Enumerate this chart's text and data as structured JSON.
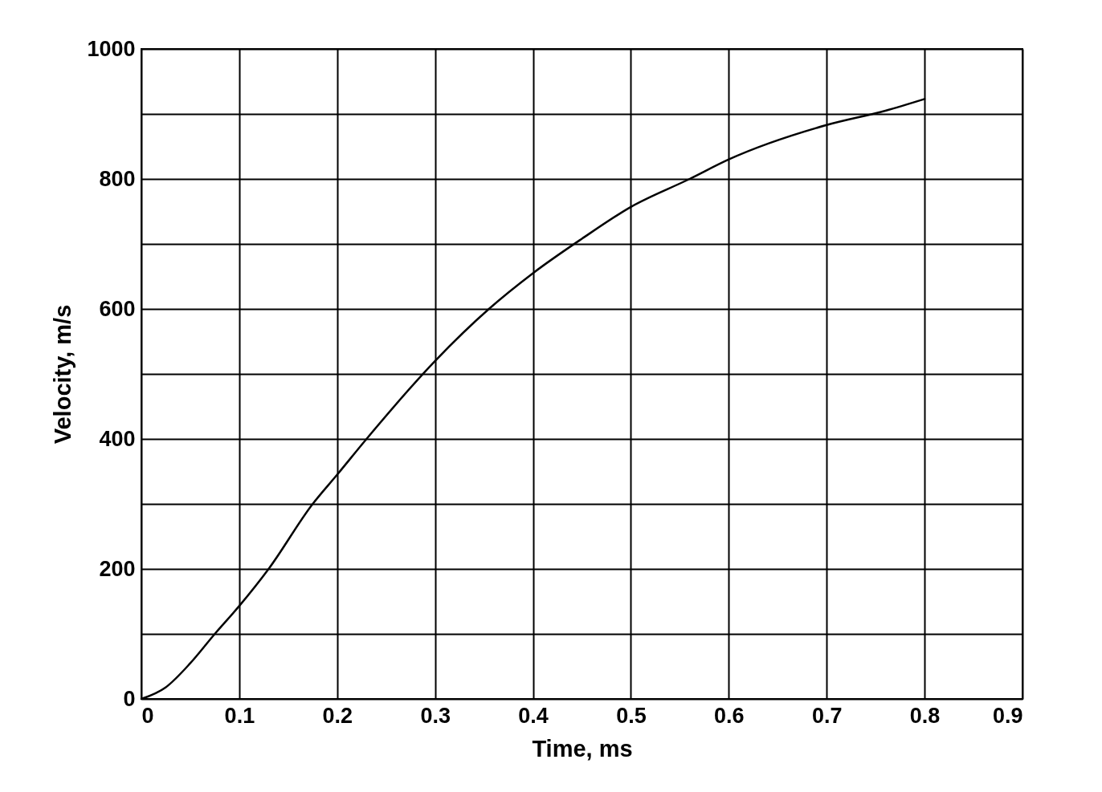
{
  "chart_data": {
    "type": "line",
    "xlabel": "Time, ms",
    "ylabel": "Velocity, m/s",
    "x": [
      0,
      0.025,
      0.05,
      0.075,
      0.1,
      0.13,
      0.175,
      0.2,
      0.23,
      0.3,
      0.355,
      0.4,
      0.45,
      0.5,
      0.56,
      0.6,
      0.7,
      0.76,
      0.8
    ],
    "series": [
      {
        "color": "#000000",
        "values": [
          0,
          18,
          55,
          100,
          143,
          200,
          300,
          345,
          400,
          520,
          600,
          655,
          708,
          757,
          800,
          830,
          883,
          905,
          923
        ]
      }
    ],
    "xlim": [
      0,
      0.9
    ],
    "xticks": [
      0,
      0.1,
      0.2,
      0.3,
      0.4,
      0.5,
      0.6,
      0.7,
      0.8,
      0.9
    ],
    "ylim": [
      0,
      1000
    ],
    "yticks": [
      0,
      {
        "value": 100,
        "label": null
      },
      200,
      {
        "value": 300,
        "label": null
      },
      400,
      {
        "value": 500,
        "label": null
      },
      600,
      {
        "value": 700,
        "label": null
      },
      800,
      {
        "value": 900,
        "label": null
      },
      1000
    ],
    "grid": true,
    "marker": "none",
    "line_style": "solid"
  }
}
